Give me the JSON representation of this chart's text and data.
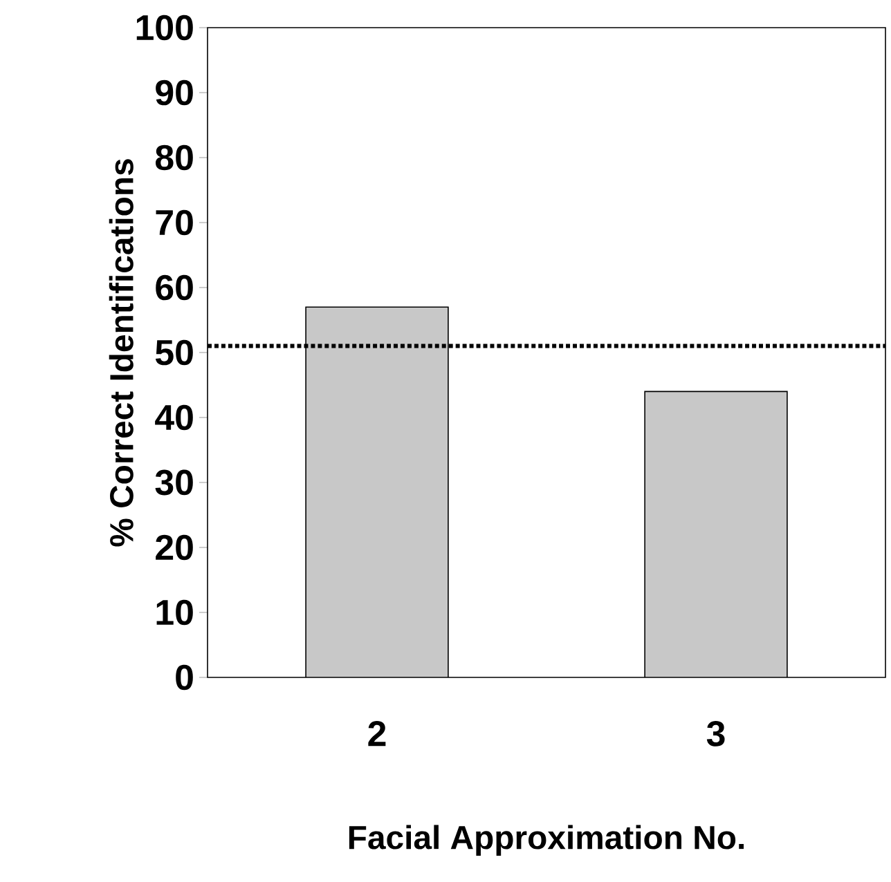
{
  "chart_data": {
    "type": "bar",
    "xlabel": "Facial Approximation No.",
    "ylabel": "% Correct Identifications",
    "categories": [
      "2",
      "3"
    ],
    "values": [
      57,
      44
    ],
    "color": "#c8c8c8",
    "ylim": [
      0,
      100
    ],
    "yticks": [
      0,
      10,
      20,
      30,
      40,
      50,
      60,
      70,
      80,
      90,
      100
    ],
    "ref_lines": [
      {
        "axis": "y",
        "value": 51,
        "line_style": "dotted",
        "color": "#000000"
      }
    ]
  }
}
